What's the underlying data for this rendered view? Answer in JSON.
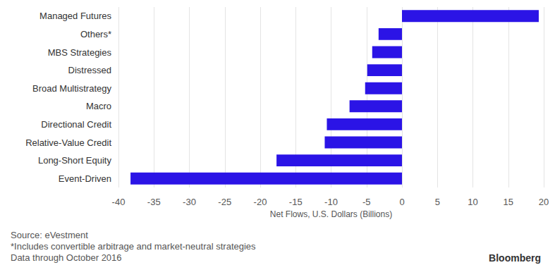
{
  "chart_data": {
    "type": "bar",
    "orientation": "horizontal",
    "categories": [
      "Managed Futures",
      "Others*",
      "MBS Strategies",
      "Distressed",
      "Broad Multistrategy",
      "Macro",
      "Directional Credit",
      "Relative-Value Credit",
      "Long-Short Equity",
      "Event-Driven"
    ],
    "values": [
      19.3,
      -3.3,
      -4.2,
      -4.9,
      -5.2,
      -7.4,
      -10.6,
      -10.9,
      -17.7,
      -38.3
    ],
    "color": "#2b14e6",
    "x_label": "Net Flows, U.S. Dollars (Billions)",
    "xlim": [
      -40,
      20
    ],
    "xticks": [
      -40,
      -35,
      -30,
      -25,
      -20,
      -15,
      -10,
      -5,
      0,
      5,
      10,
      15,
      20
    ],
    "grid": true,
    "data_labels": false,
    "notes": [
      "Source: eVestment",
      "*Includes convertible arbitrage and market-neutral strategies",
      "Data through October 2016"
    ],
    "credit": "Bloomberg"
  }
}
